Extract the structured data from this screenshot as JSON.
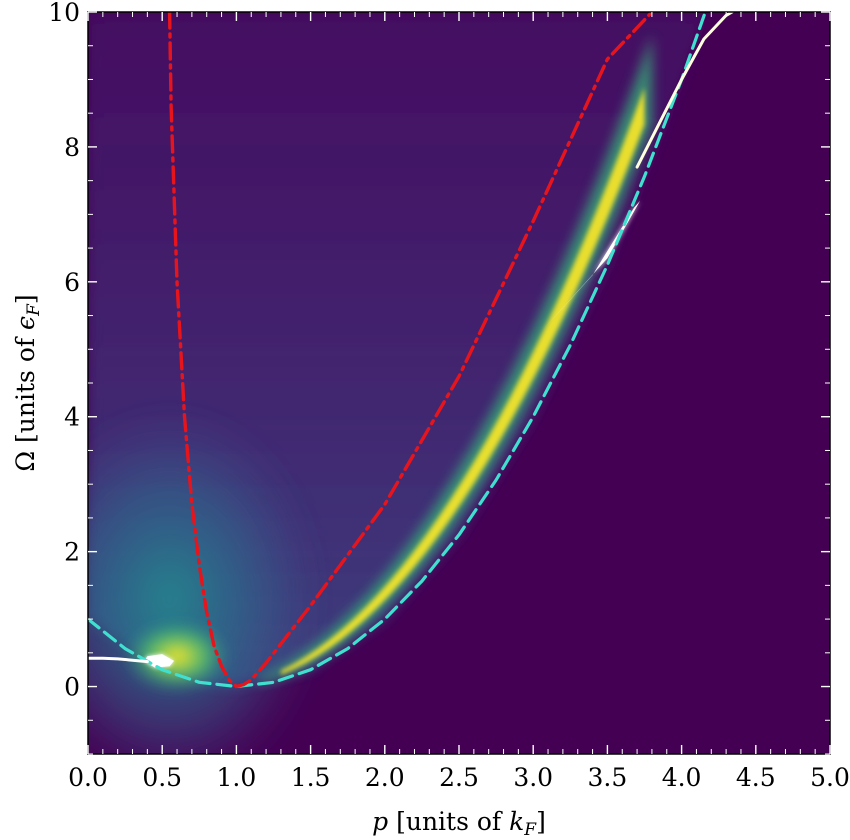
{
  "chart_data": {
    "type": "heatmap",
    "xlabel_main": "p",
    "xlabel_unit_prefix": " [units of ",
    "xlabel_unit_symbol": "k",
    "xlabel_unit_sub": "F",
    "xlabel_unit_suffix": "]",
    "ylabel_main": "Ω",
    "ylabel_unit_prefix": " [units of ",
    "ylabel_unit_symbol": "ϵ",
    "ylabel_unit_sub": "F",
    "ylabel_unit_suffix": "]",
    "xlim": [
      0.0,
      5.0
    ],
    "ylim": [
      -1.0,
      10.0
    ],
    "xticks": [
      "0.0",
      "0.5",
      "1.0",
      "1.5",
      "2.0",
      "2.5",
      "3.0",
      "3.5",
      "4.0",
      "4.5",
      "5.0"
    ],
    "xtick_values": [
      0.0,
      0.5,
      1.0,
      1.5,
      2.0,
      2.5,
      3.0,
      3.5,
      4.0,
      4.5,
      5.0
    ],
    "yticks": [
      "0",
      "2",
      "4",
      "6",
      "8",
      "10"
    ],
    "ytick_values": [
      0,
      2,
      4,
      6,
      8,
      10
    ],
    "colormap": "viridis",
    "background_color": "#440154",
    "series": [
      {
        "style": "dashed",
        "color": "#40e0d0",
        "x": [
          0.0,
          0.25,
          0.5,
          0.75,
          1.0,
          1.25,
          1.5,
          1.75,
          2.0,
          2.25,
          2.5,
          2.75,
          3.0,
          3.25,
          3.5,
          3.75,
          4.0,
          4.16
        ],
        "y": [
          1.0,
          0.5625,
          0.25,
          0.0625,
          0.0,
          0.0625,
          0.25,
          0.5625,
          1.0,
          1.5625,
          2.25,
          3.0625,
          4.0,
          5.0625,
          6.25,
          7.5625,
          9.0,
          10.0
        ]
      },
      {
        "style": "dashdot",
        "color": "#e8141c",
        "x": [
          0.55,
          0.56,
          0.6,
          0.65,
          0.7,
          0.75,
          0.8,
          0.85,
          0.9,
          0.95,
          1.0,
          1.05,
          1.1,
          1.2,
          1.5,
          2.0,
          2.5,
          3.0,
          3.5,
          3.8
        ],
        "y": [
          10.0,
          8.6,
          6.0,
          4.0,
          2.7,
          1.8,
          1.1,
          0.6,
          0.3,
          0.1,
          0.0,
          0.03,
          0.1,
          0.35,
          1.2,
          2.7,
          4.6,
          6.9,
          9.3,
          10.0
        ]
      },
      {
        "style": "solid",
        "color": "#ffffff",
        "x": [
          0.0,
          0.1,
          0.2,
          0.3,
          0.4
        ],
        "y": [
          0.42,
          0.42,
          0.41,
          0.39,
          0.37
        ]
      },
      {
        "style": "solid",
        "color": "#ffffe0",
        "x": [
          3.7,
          3.85,
          4.0,
          4.15,
          4.3,
          4.34
        ],
        "y": [
          7.7,
          8.35,
          9.0,
          9.6,
          9.95,
          10.0
        ]
      }
    ],
    "white_regions": [
      {
        "x": [
          3.05,
          3.4,
          3.68,
          3.72,
          3.5,
          3.05
        ],
        "y": [
          5.25,
          6.1,
          7.1,
          7.2,
          6.35,
          5.25
        ]
      },
      {
        "x": [
          0.38,
          0.45,
          0.55,
          0.58,
          0.5,
          0.4,
          0.38
        ],
        "y": [
          0.38,
          0.28,
          0.3,
          0.38,
          0.48,
          0.45,
          0.38
        ]
      }
    ]
  }
}
